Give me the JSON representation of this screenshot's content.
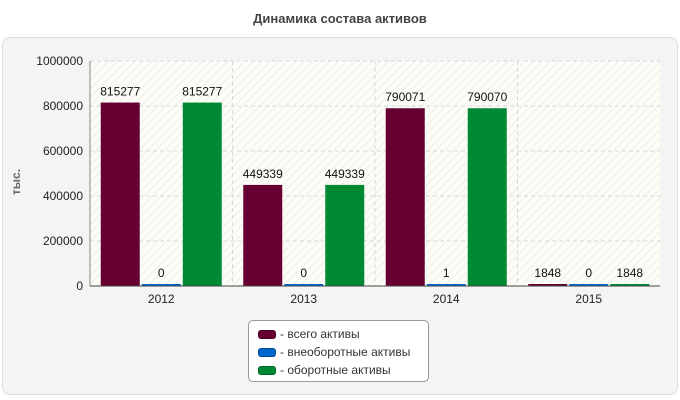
{
  "chart_data": {
    "type": "bar",
    "title": "Динамика состава активов",
    "xlabel": "",
    "ylabel": "тыс.",
    "categories": [
      "2012",
      "2013",
      "2014",
      "2015"
    ],
    "series": [
      {
        "name": "- всего активы",
        "values": [
          815277,
          449339,
          790071,
          1848
        ],
        "color": "#660033"
      },
      {
        "name": "- внеоборотные активы",
        "values": [
          0,
          0,
          1,
          0
        ],
        "color": "#0066cc"
      },
      {
        "name": "- оборотные активы",
        "values": [
          815277,
          449339,
          790070,
          1848
        ],
        "color": "#008833"
      }
    ],
    "ylim": [
      0,
      1000000
    ],
    "yticks": [
      "0",
      "200000",
      "400000",
      "600000",
      "800000",
      "1000000"
    ],
    "grid": true,
    "legend_position": "bottom-center"
  }
}
